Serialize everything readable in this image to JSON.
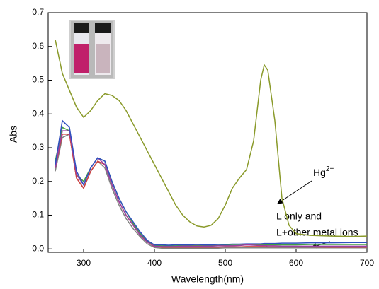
{
  "chart_data": {
    "type": "line",
    "x_label": "Wavelength(nm)",
    "y_label": "Abs",
    "xlim": [
      250,
      700
    ],
    "ylim": [
      -0.01,
      0.7
    ],
    "xticks": [
      300,
      400,
      500,
      600,
      700
    ],
    "yticks": [
      {
        "value": 0,
        "label": "0.0"
      },
      0.1,
      0.2,
      0.3,
      0.4,
      0.5,
      0.6,
      0.7
    ],
    "annotations": [
      {
        "text": "Hg",
        "sup": "2+"
      },
      {
        "text": "L only and"
      },
      {
        "text": "L+other metal ions"
      }
    ],
    "x": [
      260,
      270,
      280,
      290,
      300,
      310,
      320,
      330,
      340,
      350,
      360,
      370,
      380,
      390,
      400,
      410,
      420,
      430,
      440,
      450,
      460,
      470,
      480,
      490,
      500,
      510,
      520,
      530,
      540,
      550,
      555,
      560,
      570,
      580,
      590,
      600,
      620,
      650,
      680,
      700
    ],
    "series": [
      {
        "color": "#8a9a2a",
        "values": [
          0.62,
          0.52,
          0.47,
          0.42,
          0.39,
          0.41,
          0.44,
          0.46,
          0.455,
          0.44,
          0.41,
          0.37,
          0.33,
          0.29,
          0.25,
          0.21,
          0.17,
          0.13,
          0.1,
          0.08,
          0.068,
          0.065,
          0.07,
          0.09,
          0.13,
          0.18,
          0.21,
          0.235,
          0.32,
          0.5,
          0.545,
          0.53,
          0.38,
          0.15,
          0.07,
          0.045,
          0.04,
          0.038,
          0.037,
          0.038
        ]
      },
      {
        "color": "#3050c0",
        "values": [
          0.25,
          0.38,
          0.36,
          0.23,
          0.19,
          0.24,
          0.27,
          0.26,
          0.2,
          0.15,
          0.11,
          0.08,
          0.05,
          0.025,
          0.012,
          0.012,
          0.011,
          0.012,
          0.012,
          0.012,
          0.013,
          0.012,
          0.012,
          0.013,
          0.013,
          0.014,
          0.014,
          0.015,
          0.015,
          0.015,
          0.016,
          0.016,
          0.016,
          0.017,
          0.017,
          0.017,
          0.018,
          0.018,
          0.019,
          0.019
        ]
      },
      {
        "color": "#9b3fa0",
        "values": [
          0.24,
          0.35,
          0.35,
          0.22,
          0.19,
          0.24,
          0.27,
          0.25,
          0.19,
          0.14,
          0.1,
          0.07,
          0.04,
          0.02,
          0.008,
          0.007,
          0.007,
          0.007,
          0.008,
          0.008,
          0.008,
          0.008,
          0.008,
          0.009,
          0.009,
          0.009,
          0.01,
          0.012,
          0.011,
          0.01,
          0.01,
          0.009,
          0.009,
          0.008,
          0.008,
          0.008,
          0.008,
          0.008,
          0.008,
          0.008
        ]
      },
      {
        "color": "#d04040",
        "values": [
          0.24,
          0.34,
          0.34,
          0.21,
          0.18,
          0.23,
          0.26,
          0.25,
          0.19,
          0.14,
          0.1,
          0.07,
          0.04,
          0.02,
          0.007,
          0.005,
          0.005,
          0.005,
          0.005,
          0.005,
          0.005,
          0.005,
          0.005,
          0.005,
          0.006,
          0.006,
          0.006,
          0.007,
          0.007,
          0.007,
          0.007,
          0.006,
          0.006,
          0.006,
          0.006,
          0.006,
          0.006,
          0.005,
          0.005,
          0.005
        ]
      },
      {
        "color": "#40a040",
        "values": [
          0.26,
          0.36,
          0.35,
          0.22,
          0.2,
          0.24,
          0.27,
          0.26,
          0.2,
          0.15,
          0.11,
          0.075,
          0.045,
          0.022,
          0.01,
          0.009,
          0.009,
          0.009,
          0.01,
          0.01,
          0.01,
          0.01,
          0.01,
          0.01,
          0.011,
          0.011,
          0.011,
          0.012,
          0.012,
          0.012,
          0.012,
          0.012,
          0.012,
          0.012,
          0.012,
          0.012,
          0.013,
          0.013,
          0.013,
          0.013
        ]
      },
      {
        "color": "#808080",
        "values": [
          0.23,
          0.33,
          0.34,
          0.21,
          0.18,
          0.23,
          0.26,
          0.24,
          0.18,
          0.13,
          0.09,
          0.06,
          0.035,
          0.015,
          0.004,
          0.002,
          0.002,
          0.002,
          0.002,
          0.002,
          0.002,
          0.002,
          0.002,
          0.002,
          0.003,
          0.003,
          0.003,
          0.003,
          0.003,
          0.003,
          0.003,
          0.003,
          0.003,
          0.003,
          0.003,
          0.003,
          0.003,
          0.003,
          0.003,
          0.003
        ]
      }
    ]
  }
}
